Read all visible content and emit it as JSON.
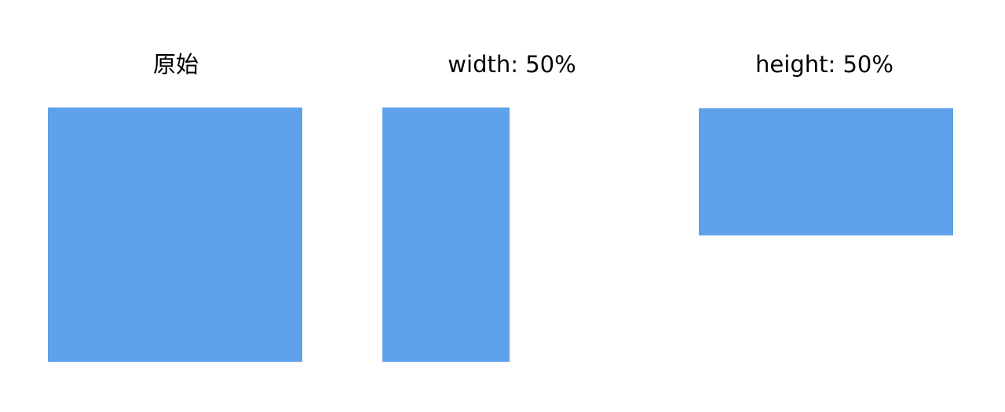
{
  "panels": [
    {
      "title": "原始",
      "scale_x": 1.0,
      "scale_y": 1.0
    },
    {
      "title": "width: 50%",
      "scale_x": 0.5,
      "scale_y": 1.0
    },
    {
      "title": "height: 50%",
      "scale_x": 1.0,
      "scale_y": 0.5
    }
  ],
  "colors": {
    "rect_fill": "#5fa1ea",
    "background": "#ffffff",
    "text": "#000000"
  }
}
